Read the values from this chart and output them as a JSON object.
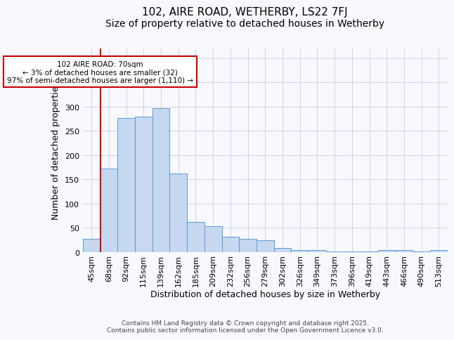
{
  "title": "102, AIRE ROAD, WETHERBY, LS22 7FJ",
  "subtitle": "Size of property relative to detached houses in Wetherby",
  "xlabel": "Distribution of detached houses by size in Wetherby",
  "ylabel": "Number of detached properties",
  "categories": [
    "45sqm",
    "68sqm",
    "92sqm",
    "115sqm",
    "139sqm",
    "162sqm",
    "185sqm",
    "209sqm",
    "232sqm",
    "256sqm",
    "279sqm",
    "302sqm",
    "326sqm",
    "349sqm",
    "373sqm",
    "396sqm",
    "419sqm",
    "443sqm",
    "466sqm",
    "490sqm",
    "513sqm"
  ],
  "values": [
    28,
    173,
    277,
    279,
    297,
    162,
    62,
    53,
    32,
    27,
    25,
    9,
    5,
    4,
    2,
    1,
    1,
    4,
    4,
    1,
    4
  ],
  "bar_color": "#c5d8f0",
  "bar_edge_color": "#5b9bd5",
  "red_line_index": 1,
  "annotation_text": "102 AIRE ROAD: 70sqm\n← 3% of detached houses are smaller (32)\n97% of semi-detached houses are larger (1,110) →",
  "annotation_box_color": "#ffffff",
  "annotation_box_edge": "#cc0000",
  "figure_bg": "#f8f9ff",
  "plot_bg_color": "#f8f9ff",
  "grid_color": "#ccccdd",
  "title_fontsize": 11,
  "subtitle_fontsize": 10,
  "axis_label_fontsize": 9,
  "tick_fontsize": 8,
  "footer_text": "Contains HM Land Registry data © Crown copyright and database right 2025.\nContains public sector information licensed under the Open Government Licence v3.0.",
  "ylim": [
    0,
    420
  ]
}
